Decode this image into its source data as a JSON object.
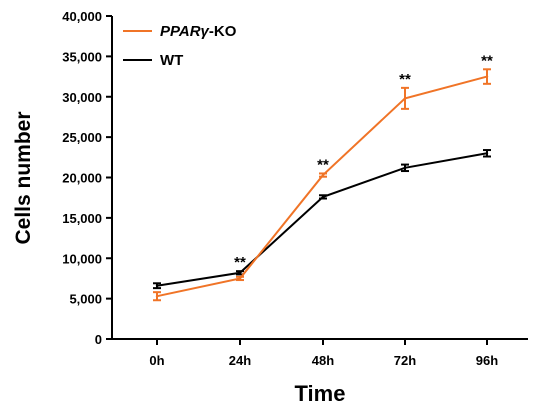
{
  "chart_data": {
    "type": "line",
    "categories": [
      "0h",
      "24h",
      "48h",
      "72h",
      "96h"
    ],
    "xlabel": "Time",
    "ylabel": "Cells number",
    "ylim": [
      0,
      40000
    ],
    "yticks": [
      "0",
      "5,000",
      "10,000",
      "15,000",
      "20,000",
      "25,000",
      "30,000",
      "35,000",
      "40,000"
    ],
    "legend_position": "top-left",
    "series": [
      {
        "name_italic": "PPARγ",
        "name_suffix": "-KO",
        "color": "#f07427",
        "values": [
          5300,
          7500,
          20300,
          29800,
          32500
        ],
        "errors": [
          500,
          200,
          200,
          1300,
          900
        ]
      },
      {
        "name": "WT",
        "color": "#000000",
        "values": [
          6600,
          8200,
          17600,
          21200,
          23000
        ],
        "errors": [
          300,
          200,
          200,
          400,
          400
        ]
      }
    ],
    "significance": [
      "",
      "**",
      "**",
      "**",
      "**"
    ]
  }
}
